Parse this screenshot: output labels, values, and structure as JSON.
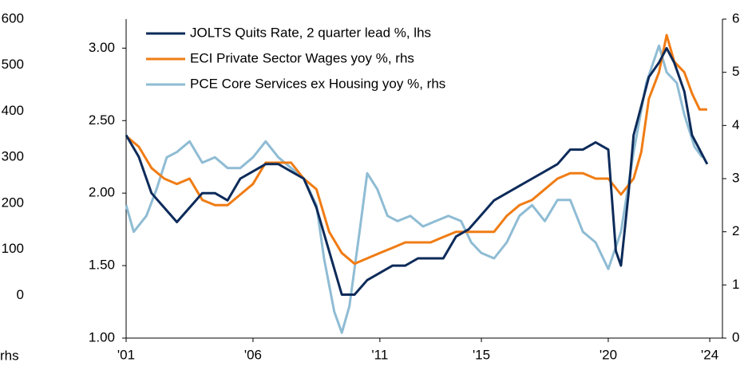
{
  "chart_data": {
    "type": "line",
    "xlim": [
      2001,
      2024.5
    ],
    "xticks": [
      {
        "value": 2001,
        "label": "'01"
      },
      {
        "value": 2006,
        "label": "'06"
      },
      {
        "value": 2011,
        "label": "'11"
      },
      {
        "value": 2015,
        "label": "'15"
      },
      {
        "value": 2020,
        "label": "'20"
      },
      {
        "value": 2024,
        "label": "'24"
      }
    ],
    "ylim": [
      1.0,
      3.2
    ],
    "yticks": [
      {
        "value": 1.0,
        "label": "1.00"
      },
      {
        "value": 1.5,
        "label": "1.50"
      },
      {
        "value": 2.0,
        "label": "2.00"
      },
      {
        "value": 2.5,
        "label": "2.50"
      },
      {
        "value": 3.0,
        "label": "3.00"
      }
    ],
    "y2lim": [
      0,
      6
    ],
    "y2ticks": [
      0,
      1,
      2,
      3,
      4,
      5,
      6
    ],
    "y3lim": [
      -93,
      600
    ],
    "y3ticks": [
      0,
      100,
      200,
      300,
      400,
      500,
      600
    ],
    "y3_label": "rhs",
    "legend": "top-left",
    "grid": false,
    "series": [
      {
        "name": "JOLTS Quits Rate, 2 quarter lead %, lhs",
        "color": "#0d2b5a",
        "axis": "y",
        "x": [
          2001,
          2001.5,
          2002,
          2002.5,
          2003,
          2003.5,
          2004,
          2004.5,
          2005,
          2005.5,
          2006,
          2006.5,
          2007,
          2007.5,
          2008,
          2008.5,
          2009,
          2009.5,
          2010,
          2010.5,
          2011,
          2011.5,
          2012,
          2012.5,
          2013,
          2013.5,
          2014,
          2014.5,
          2015,
          2015.5,
          2016,
          2016.5,
          2017,
          2017.5,
          2018,
          2018.5,
          2019,
          2019.5,
          2020,
          2020.3,
          2020.5,
          2020.8,
          2021,
          2021.3,
          2021.6,
          2022,
          2022.3,
          2022.6,
          2023,
          2023.3,
          2023.6,
          2023.9
        ],
        "values": [
          2.4,
          2.25,
          2.0,
          1.9,
          1.8,
          1.9,
          2.0,
          2.0,
          1.95,
          2.1,
          2.15,
          2.2,
          2.2,
          2.15,
          2.1,
          1.9,
          1.6,
          1.3,
          1.3,
          1.4,
          1.45,
          1.5,
          1.5,
          1.55,
          1.55,
          1.55,
          1.7,
          1.75,
          1.85,
          1.95,
          2.0,
          2.05,
          2.1,
          2.15,
          2.2,
          2.3,
          2.3,
          2.35,
          2.3,
          1.6,
          1.5,
          2.0,
          2.4,
          2.6,
          2.8,
          2.9,
          3.0,
          2.9,
          2.7,
          2.4,
          2.3,
          2.2
        ]
      },
      {
        "name": "ECI Private Sector Wages yoy %, rhs",
        "color": "#f07c14",
        "axis": "y2",
        "x": [
          2001,
          2001.5,
          2002,
          2002.5,
          2003,
          2003.5,
          2004,
          2004.5,
          2005,
          2005.5,
          2006,
          2006.5,
          2007,
          2007.5,
          2008,
          2008.5,
          2009,
          2009.5,
          2010,
          2010.5,
          2011,
          2011.5,
          2012,
          2012.5,
          2013,
          2013.5,
          2014,
          2014.5,
          2015,
          2015.5,
          2016,
          2016.5,
          2017,
          2017.5,
          2018,
          2018.5,
          2019,
          2019.5,
          2020,
          2020.5,
          2021,
          2021.3,
          2021.6,
          2022,
          2022.3,
          2022.6,
          2023,
          2023.3,
          2023.6,
          2023.9
        ],
        "values": [
          3.8,
          3.6,
          3.2,
          3.0,
          2.9,
          3.0,
          2.6,
          2.5,
          2.5,
          2.7,
          2.9,
          3.3,
          3.3,
          3.3,
          3.0,
          2.8,
          2.0,
          1.6,
          1.4,
          1.5,
          1.6,
          1.7,
          1.8,
          1.8,
          1.8,
          1.9,
          2.0,
          2.0,
          2.0,
          2.0,
          2.3,
          2.5,
          2.6,
          2.8,
          3.0,
          3.1,
          3.1,
          3.0,
          3.0,
          2.7,
          3.0,
          3.5,
          4.5,
          5.0,
          5.7,
          5.2,
          5.0,
          4.6,
          4.3,
          4.3
        ]
      },
      {
        "name": "PCE Core Services ex Housing yoy %, rhs",
        "color": "#8fbcd4",
        "axis": "y2",
        "x": [
          2001,
          2001.3,
          2001.8,
          2002.2,
          2002.6,
          2003,
          2003.5,
          2004,
          2004.5,
          2005,
          2005.5,
          2006,
          2006.5,
          2007,
          2007.5,
          2008,
          2008.5,
          2008.8,
          2009.2,
          2009.5,
          2009.8,
          2010.2,
          2010.5,
          2010.9,
          2011.3,
          2011.7,
          2012.2,
          2012.7,
          2013.2,
          2013.7,
          2014.2,
          2014.6,
          2015,
          2015.5,
          2016,
          2016.5,
          2017,
          2017.5,
          2018,
          2018.5,
          2019,
          2019.5,
          2020,
          2020.5,
          2021,
          2021.5,
          2022,
          2022.3,
          2022.7,
          2023,
          2023.4,
          2023.7
        ],
        "values": [
          2.5,
          2.0,
          2.3,
          2.8,
          3.4,
          3.5,
          3.7,
          3.3,
          3.4,
          3.2,
          3.2,
          3.4,
          3.7,
          3.4,
          3.2,
          3.0,
          2.5,
          1.5,
          0.5,
          0.1,
          0.6,
          2.0,
          3.1,
          2.8,
          2.3,
          2.2,
          2.3,
          2.1,
          2.2,
          2.3,
          2.2,
          1.8,
          1.6,
          1.5,
          1.8,
          2.3,
          2.5,
          2.2,
          2.6,
          2.6,
          2.0,
          1.8,
          1.3,
          2.0,
          3.5,
          4.8,
          5.5,
          5.0,
          4.8,
          4.2,
          3.6,
          3.4
        ]
      }
    ]
  }
}
